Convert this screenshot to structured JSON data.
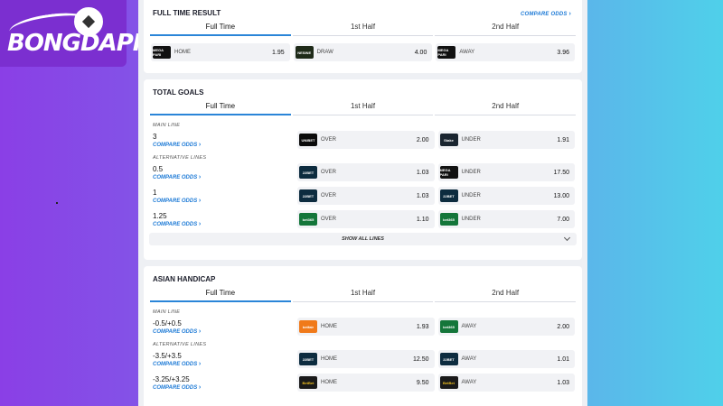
{
  "logo": {
    "text": "BONGDAPI"
  },
  "ft_result": {
    "title": "FULL TIME RESULT",
    "compare": "COMPARE ODDS",
    "tabs": [
      "Full Time",
      "1st Half",
      "2nd Half"
    ],
    "odds": [
      {
        "bk": "MEGA PARI",
        "bk_color": "#111111",
        "sel": "HOME",
        "val": "1.95"
      },
      {
        "bk": "NESINE",
        "bk_color": "#1e2a18",
        "sel": "DRAW",
        "val": "4.00"
      },
      {
        "bk": "MEGA PARI",
        "bk_color": "#111111",
        "sel": "AWAY",
        "val": "3.96"
      }
    ]
  },
  "total_goals": {
    "title": "TOTAL GOALS",
    "tabs": [
      "Full Time",
      "1st Half",
      "2nd Half"
    ],
    "main_line_label": "MAIN LINE",
    "alt_lines_label": "ALTERNATIVE LINES",
    "compare": "COMPARE ODDS",
    "main": {
      "line": "3",
      "over_bk": "UNIBET",
      "over_color": "#0b0b0b",
      "over_sel": "OVER",
      "over": "2.00",
      "under_bk": "Stake",
      "under_color": "#1a2530",
      "under_sel": "UNDER",
      "under": "1.91"
    },
    "alts": [
      {
        "line": "0.5",
        "over_bk": "22BET",
        "over_color": "#0d2c3f",
        "over_sel": "OVER",
        "over": "1.03",
        "under_bk": "MEGA PARI",
        "under_color": "#111111",
        "under_sel": "UNDER",
        "under": "17.50"
      },
      {
        "line": "1",
        "over_bk": "22BET",
        "over_color": "#0d2c3f",
        "over_sel": "OVER",
        "over": "1.03",
        "under_bk": "22BET",
        "under_color": "#0d2c3f",
        "under_sel": "UNDER",
        "under": "13.00"
      },
      {
        "line": "1.25",
        "over_bk": "bet365",
        "over_color": "#14763a",
        "over_sel": "OVER",
        "over": "1.10",
        "under_bk": "bet365",
        "under_color": "#14763a",
        "under_sel": "UNDER",
        "under": "7.00"
      }
    ],
    "show_all": "SHOW ALL LINES"
  },
  "asian_handicap": {
    "title": "ASIAN HANDICAP",
    "tabs": [
      "Full Time",
      "1st Half",
      "2nd Half"
    ],
    "main_line_label": "MAIN LINE",
    "alt_lines_label": "ALTERNATIVE LINES",
    "compare": "COMPARE ODDS",
    "main": {
      "line": "-0.5/+0.5",
      "home_bk": "betfair",
      "home_color": "#f07a1a",
      "home_sel": "HOME",
      "home": "1.93",
      "away_bk": "bet365",
      "away_color": "#14763a",
      "away_sel": "AWAY",
      "away": "2.00"
    },
    "alts": [
      {
        "line": "-3.5/+3.5",
        "home_bk": "22BET",
        "home_color": "#0d2c3f",
        "home_sel": "HOME",
        "home": "12.50",
        "away_bk": "22BET",
        "away_color": "#0d2c3f",
        "away_sel": "AWAY",
        "away": "1.01"
      },
      {
        "line": "-3.25/+3.25",
        "home_bk": "BetBet",
        "home_color": "#1a1a1a",
        "home_sel": "HOME",
        "home": "9.50",
        "away_bk": "BetBet",
        "away_color": "#1a1a1a",
        "away_sel": "AWAY",
        "away": "1.03"
      }
    ]
  }
}
